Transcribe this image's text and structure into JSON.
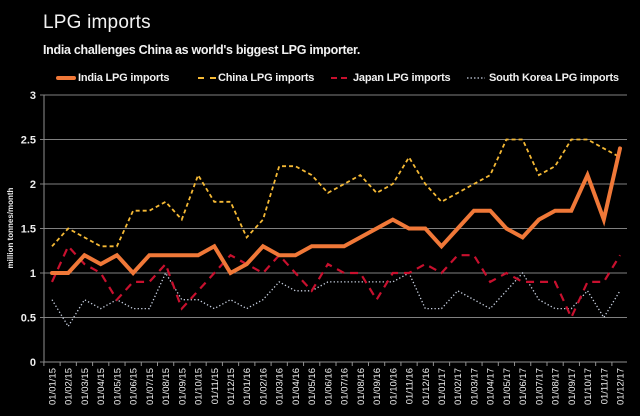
{
  "title": "LPG imports",
  "subtitle": "India challenges China as world's biggest LPG importer.",
  "chart_data": {
    "type": "line",
    "title": "LPG imports",
    "subtitle": "India challenges China as world's biggest LPG importer.",
    "xlabel": "",
    "ylabel": "million tonnes/month",
    "ylim": [
      0,
      3
    ],
    "yticks": [
      0,
      0.5,
      1,
      1.5,
      2,
      2.5,
      3
    ],
    "ytick_labels": [
      "0",
      "0.5",
      "1",
      "1.5",
      "2",
      "2.5",
      "3"
    ],
    "grid": true,
    "legend_position": "top",
    "x": [
      "01/01/15",
      "01/02/15",
      "01/03/15",
      "01/04/15",
      "01/05/15",
      "01/06/15",
      "01/07/15",
      "01/08/15",
      "01/09/15",
      "01/10/15",
      "01/11/15",
      "01/12/15",
      "01/01/16",
      "01/02/16",
      "01/03/16",
      "01/04/16",
      "01/05/16",
      "01/06/16",
      "01/07/16",
      "01/08/16",
      "01/09/16",
      "01/10/16",
      "01/11/16",
      "01/12/16",
      "01/01/17",
      "01/02/17",
      "01/03/17",
      "01/04/17",
      "01/05/17",
      "01/06/17",
      "01/07/17",
      "01/08/17",
      "01/09/17",
      "01/10/17",
      "01/11/17",
      "01/12/17"
    ],
    "series": [
      {
        "name": "India LPG imports",
        "style": "solid-thick",
        "color": "#f07838",
        "values": [
          1.0,
          1.0,
          1.2,
          1.1,
          1.2,
          1.0,
          1.2,
          1.2,
          1.2,
          1.2,
          1.3,
          1.0,
          1.1,
          1.3,
          1.2,
          1.2,
          1.3,
          1.3,
          1.3,
          1.4,
          1.5,
          1.6,
          1.5,
          1.5,
          1.3,
          1.5,
          1.7,
          1.7,
          1.5,
          1.4,
          1.6,
          1.7,
          1.7,
          2.1,
          1.6,
          2.4
        ]
      },
      {
        "name": "China LPG imports",
        "style": "dashed",
        "color": "#f5b935",
        "values": [
          1.3,
          1.5,
          1.4,
          1.3,
          1.3,
          1.7,
          1.7,
          1.8,
          1.6,
          2.1,
          1.8,
          1.8,
          1.4,
          1.6,
          2.2,
          2.2,
          2.1,
          1.9,
          2.0,
          2.1,
          1.9,
          2.0,
          2.3,
          2.0,
          1.8,
          1.9,
          2.0,
          2.1,
          2.5,
          2.5,
          2.1,
          2.2,
          2.5,
          2.5,
          2.4,
          2.3
        ]
      },
      {
        "name": "Japan LPG imports",
        "style": "long-dashed",
        "color": "#c8102e",
        "values": [
          0.9,
          1.3,
          1.1,
          1.0,
          0.7,
          0.9,
          0.9,
          1.1,
          0.6,
          0.8,
          1.0,
          1.2,
          1.1,
          1.0,
          1.2,
          1.0,
          0.8,
          1.1,
          1.0,
          1.0,
          0.7,
          1.0,
          1.0,
          1.1,
          1.0,
          1.2,
          1.2,
          0.9,
          1.0,
          0.9,
          0.9,
          0.9,
          0.5,
          0.9,
          0.9,
          1.2
        ]
      },
      {
        "name": "South Korea LPG imports",
        "style": "dotted",
        "color": "#c8d0e0",
        "values": [
          0.7,
          0.4,
          0.7,
          0.6,
          0.7,
          0.6,
          0.6,
          1.0,
          0.7,
          0.7,
          0.6,
          0.7,
          0.6,
          0.7,
          0.9,
          0.8,
          0.8,
          0.9,
          0.9,
          0.9,
          0.9,
          0.9,
          1.0,
          0.6,
          0.6,
          0.8,
          0.7,
          0.6,
          0.8,
          1.0,
          0.7,
          0.6,
          0.6,
          0.8,
          0.5,
          0.8
        ]
      }
    ]
  },
  "colors": {
    "background": "#000000",
    "grid": "#808080",
    "text": "#f0f0f0"
  }
}
